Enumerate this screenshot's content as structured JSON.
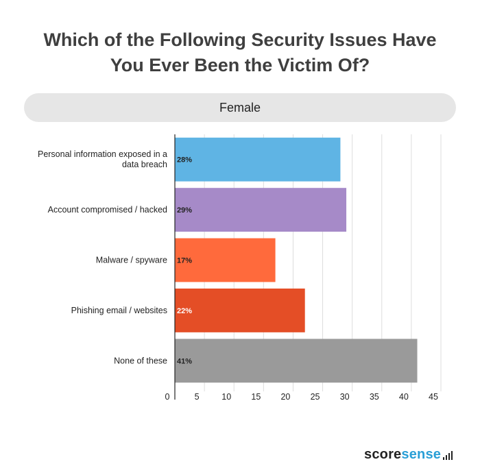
{
  "chart_data": {
    "type": "bar",
    "orientation": "horizontal",
    "title_lines": [
      "Which of the Following Security Issues Have",
      "You Ever Been the Victim Of?"
    ],
    "subtitle": "Female",
    "categories": [
      [
        "Personal information exposed in a",
        "data breach"
      ],
      [
        "Account compromised / hacked"
      ],
      [
        "Malware / spyware"
      ],
      [
        "Phishing email / websites"
      ],
      [
        "None of these"
      ]
    ],
    "values": [
      28,
      29,
      17,
      22,
      41
    ],
    "value_labels": [
      "28%",
      "29%",
      "17%",
      "22%",
      "41%"
    ],
    "colors": [
      "#5fb4e4",
      "#a68ac8",
      "#ff6a3c",
      "#e44e26",
      "#9a9a9a"
    ],
    "value_label_colors": [
      "#222222",
      "#222222",
      "#222222",
      "#ffffff",
      "#222222"
    ],
    "xlim": [
      0,
      45
    ],
    "x_ticks": [
      0,
      5,
      10,
      15,
      20,
      25,
      30,
      35,
      40,
      45
    ],
    "grid": true
  },
  "brand": {
    "part1": "score",
    "part2": "sense",
    "icon": "signal-bars-icon"
  }
}
